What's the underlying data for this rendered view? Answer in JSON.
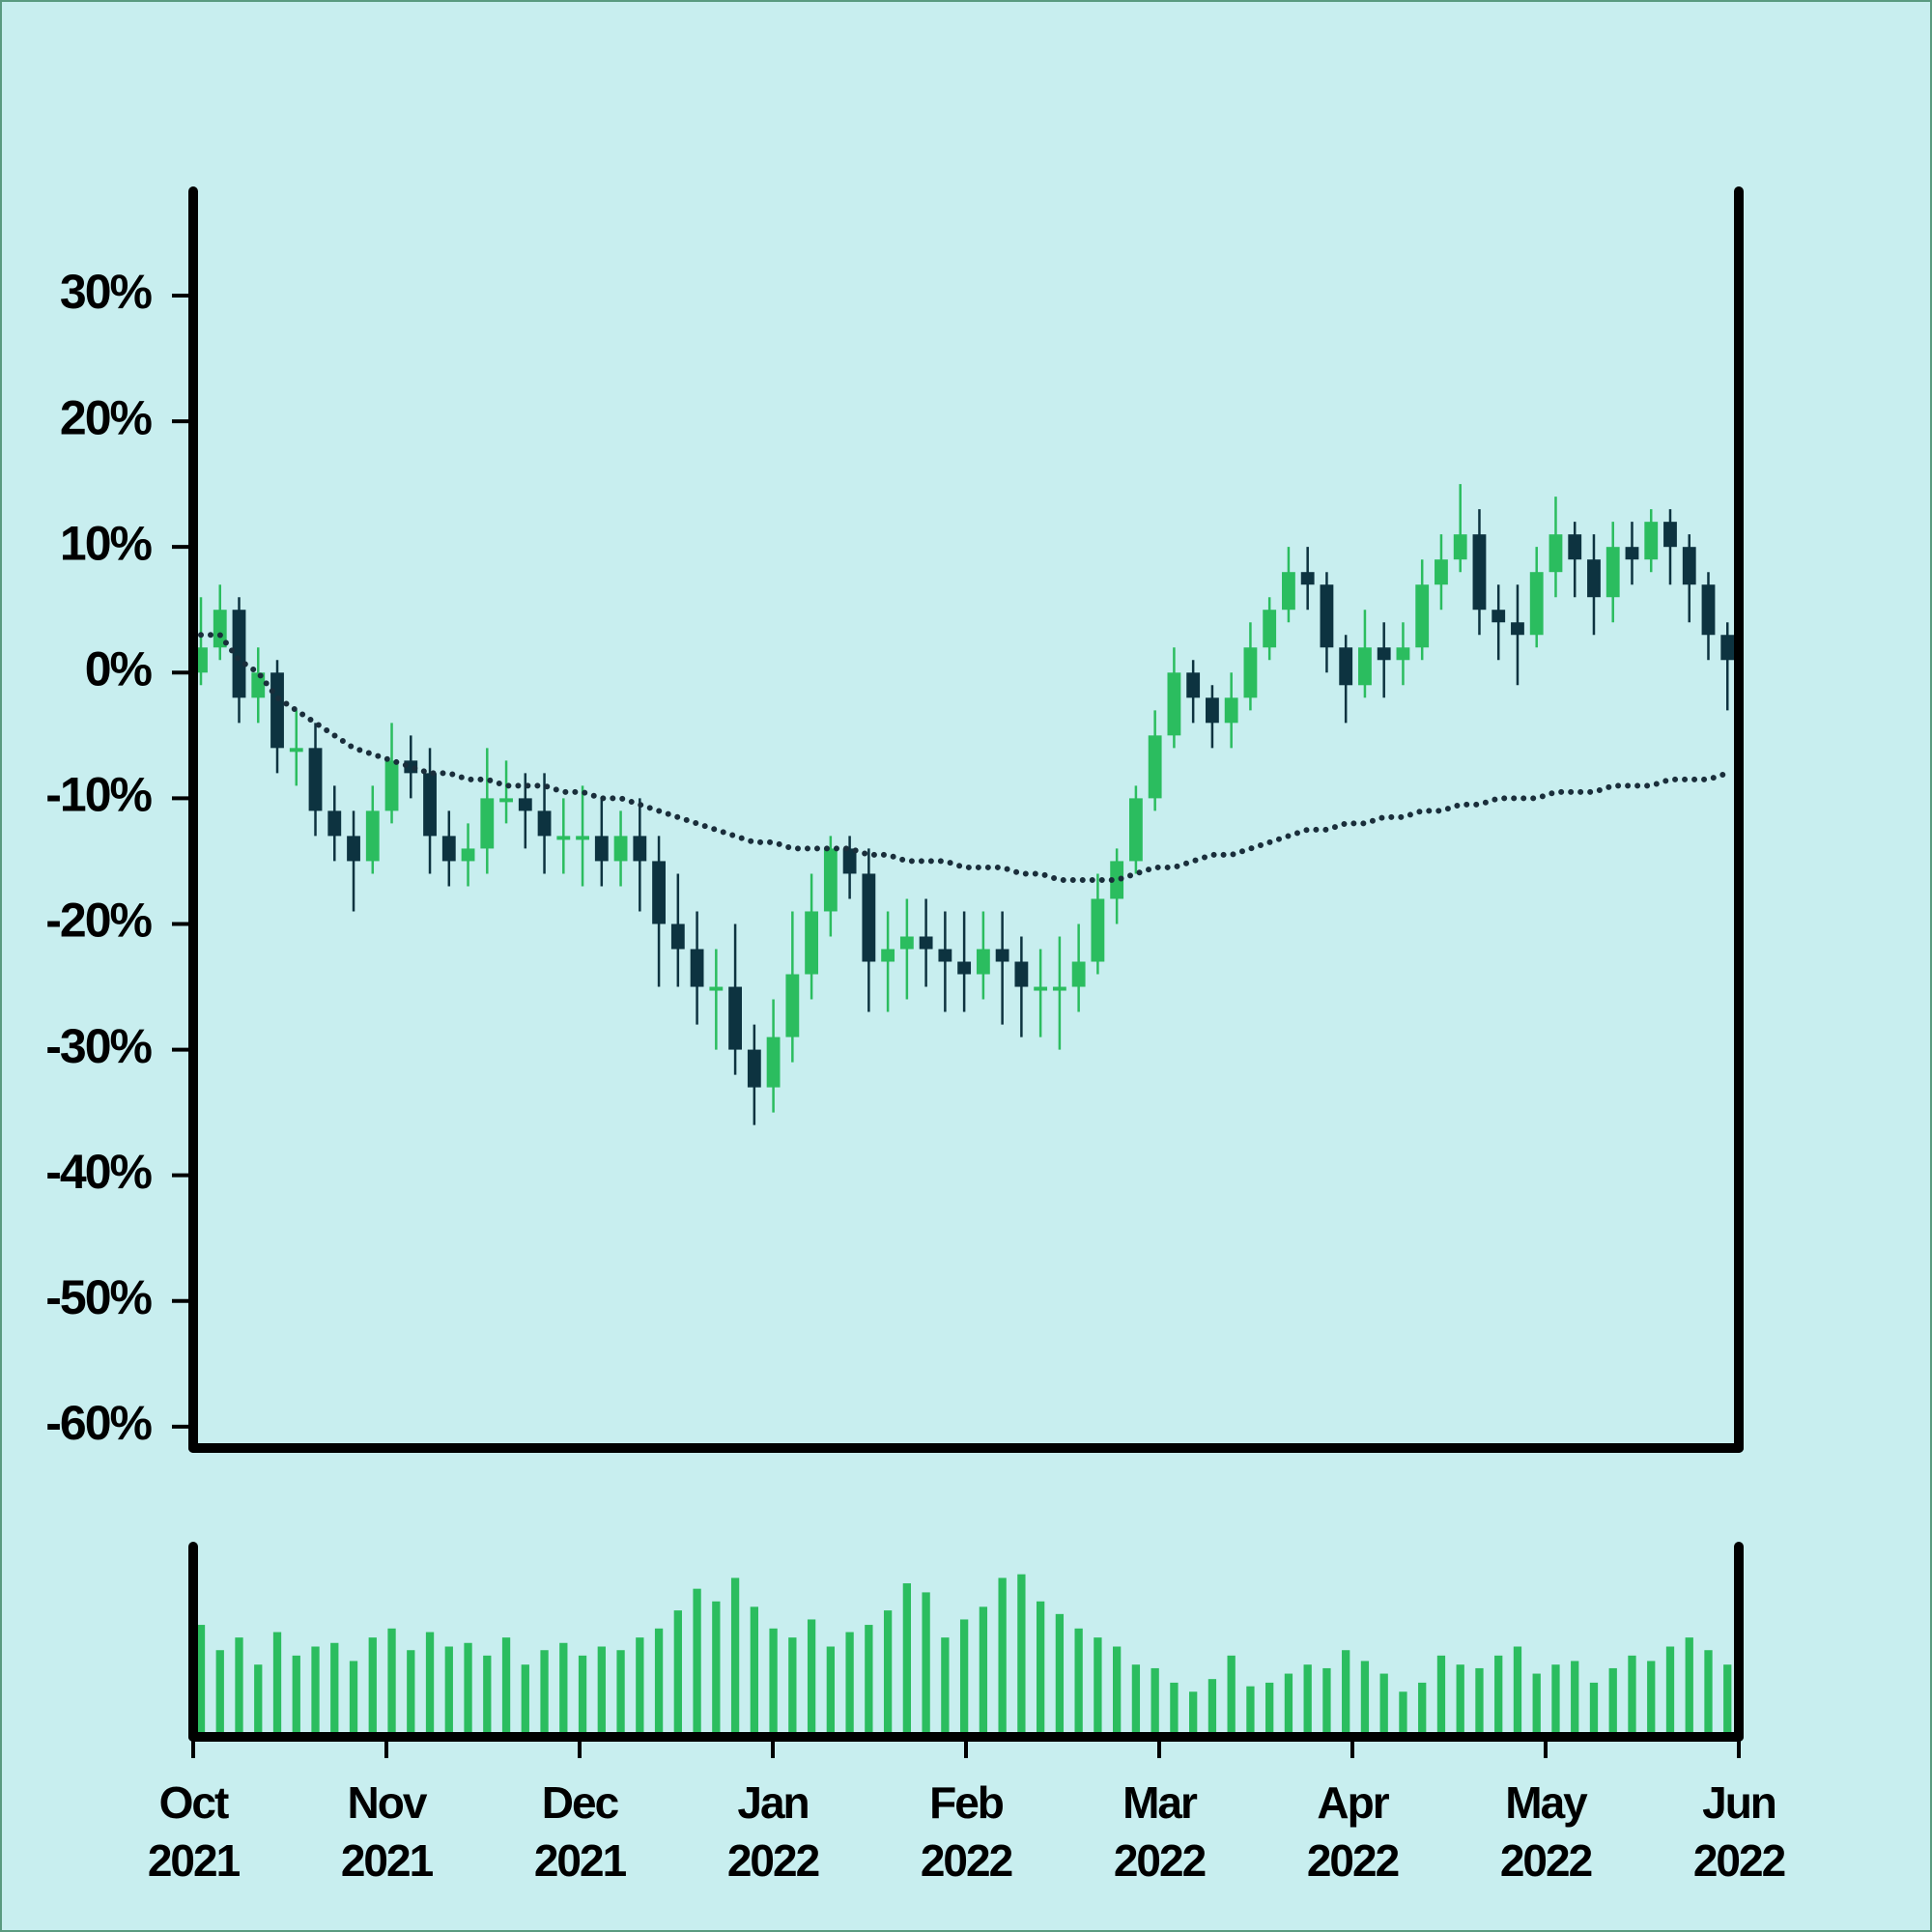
{
  "chart_data": {
    "type": "candlestick",
    "xlim": [
      "2021-10",
      "2022-06"
    ],
    "xticks": [
      {
        "value": "2021-10",
        "label": "Oct 2021"
      },
      {
        "value": "2021-11",
        "label": "Nov 2021"
      },
      {
        "value": "2021-12",
        "label": "Dec 2021"
      },
      {
        "value": "2022-01",
        "label": "Jan 2022"
      },
      {
        "value": "2022-02",
        "label": "Feb 2022"
      },
      {
        "value": "2022-03",
        "label": "Mar 2022"
      },
      {
        "value": "2022-04",
        "label": "Apr 2022"
      },
      {
        "value": "2022-05",
        "label": "May 2022"
      },
      {
        "value": "2022-06",
        "label": "Jun 2022"
      }
    ],
    "ylim": [
      -61.7,
      38.3
    ],
    "yticks": [
      {
        "value": -60,
        "label": "-60%"
      },
      {
        "value": -50,
        "label": "-50%"
      },
      {
        "value": -40,
        "label": "-40%"
      },
      {
        "value": -30,
        "label": "-30%"
      },
      {
        "value": -20,
        "label": "-20%"
      },
      {
        "value": -10,
        "label": "-10%"
      },
      {
        "value": 0,
        "label": "0%"
      },
      {
        "value": 10,
        "label": "10%"
      },
      {
        "value": 20,
        "label": "20%"
      },
      {
        "value": 30,
        "label": "30%"
      }
    ],
    "up_color": "#2bbd5f",
    "down_color": "#0d3340",
    "ma_color": "#1a2e3b",
    "volume_color": "#2bbd5f",
    "open": [
      0,
      2,
      5,
      -2,
      0,
      -6,
      -6,
      -11,
      -13,
      -15,
      -11,
      -7,
      -8,
      -13,
      -15,
      -14,
      -10,
      -10,
      -11,
      -13,
      -13,
      -13,
      -15,
      -13,
      -15,
      -20,
      -22,
      -25,
      -25,
      -30,
      -33,
      -29,
      -24,
      -19,
      -14,
      -16,
      -23,
      -22,
      -21,
      -22,
      -23,
      -24,
      -22,
      -23,
      -25,
      -25,
      -25,
      -23,
      -18,
      -15,
      -10,
      -5,
      0,
      -2,
      -4,
      -2,
      2,
      5,
      8,
      7,
      2,
      -1,
      2,
      1,
      2,
      7,
      9,
      11,
      5,
      4,
      3,
      8,
      11,
      9,
      6,
      10,
      9,
      12,
      10,
      7,
      3
    ],
    "high": [
      6,
      7,
      6,
      2,
      1,
      -3,
      -4,
      -9,
      -11,
      -9,
      -4,
      -5,
      -6,
      -11,
      -12,
      -6,
      -7,
      -8,
      -8,
      -10,
      -9,
      -10,
      -11,
      -10,
      -13,
      -16,
      -19,
      -22,
      -20,
      -28,
      -26,
      -19,
      -16,
      -13,
      -13,
      -14,
      -19,
      -18,
      -18,
      -19,
      -19,
      -19,
      -19,
      -21,
      -22,
      -21,
      -20,
      -16,
      -14,
      -9,
      -3,
      2,
      1,
      -1,
      0,
      4,
      6,
      10,
      10,
      8,
      3,
      5,
      4,
      4,
      9,
      11,
      15,
      13,
      7,
      7,
      10,
      14,
      12,
      11,
      12,
      12,
      13,
      13,
      11,
      8,
      4
    ],
    "low": [
      -1,
      1,
      -4,
      -4,
      -8,
      -9,
      -13,
      -15,
      -19,
      -16,
      -12,
      -10,
      -16,
      -17,
      -17,
      -16,
      -12,
      -14,
      -16,
      -16,
      -17,
      -17,
      -17,
      -19,
      -25,
      -25,
      -28,
      -30,
      -32,
      -36,
      -35,
      -31,
      -26,
      -21,
      -18,
      -27,
      -27,
      -26,
      -25,
      -27,
      -27,
      -26,
      -28,
      -29,
      -29,
      -30,
      -27,
      -24,
      -20,
      -16,
      -11,
      -6,
      -4,
      -6,
      -6,
      -3,
      1,
      4,
      5,
      0,
      -4,
      -2,
      -2,
      -1,
      1,
      5,
      8,
      3,
      1,
      -1,
      2,
      6,
      6,
      3,
      4,
      7,
      8,
      7,
      4,
      1,
      -3
    ],
    "close": [
      2,
      5,
      -2,
      0,
      -6,
      -6,
      -11,
      -13,
      -15,
      -11,
      -7,
      -8,
      -13,
      -15,
      -14,
      -10,
      -10,
      -11,
      -13,
      -13,
      -13,
      -15,
      -13,
      -15,
      -20,
      -22,
      -25,
      -25,
      -30,
      -33,
      -29,
      -24,
      -19,
      -14,
      -16,
      -23,
      -22,
      -21,
      -22,
      -23,
      -24,
      -22,
      -23,
      -25,
      -25,
      -25,
      -23,
      -18,
      -15,
      -10,
      -5,
      0,
      -2,
      -4,
      -2,
      2,
      5,
      8,
      7,
      2,
      -1,
      2,
      1,
      2,
      7,
      9,
      11,
      5,
      4,
      3,
      8,
      11,
      9,
      6,
      10,
      9,
      12,
      10,
      7,
      3,
      1
    ],
    "moving_average": [
      3,
      3,
      1,
      0,
      -2,
      -3,
      -4,
      -5,
      -6,
      -6.5,
      -7,
      -7.5,
      -8,
      -8,
      -8.5,
      -8.5,
      -9,
      -9,
      -9,
      -9.5,
      -9.5,
      -10,
      -10,
      -10.5,
      -11,
      -11.5,
      -12,
      -12.5,
      -13,
      -13.5,
      -13.5,
      -14,
      -14,
      -14,
      -14,
      -14.5,
      -14.5,
      -15,
      -15,
      -15,
      -15.5,
      -15.5,
      -15.5,
      -16,
      -16,
      -16.5,
      -16.5,
      -16.5,
      -16.5,
      -16,
      -15.5,
      -15.5,
      -15,
      -14.5,
      -14.5,
      -14,
      -13.5,
      -13,
      -12.5,
      -12.5,
      -12,
      -12,
      -11.5,
      -11.5,
      -11,
      -11,
      -10.5,
      -10.5,
      -10,
      -10,
      -10,
      -9.5,
      -9.5,
      -9.5,
      -9,
      -9,
      -9,
      -8.5,
      -8.5,
      -8.5,
      -8
    ],
    "volume_ylim": [
      0,
      100
    ],
    "volume": [
      62,
      48,
      55,
      40,
      58,
      45,
      50,
      52,
      42,
      55,
      60,
      48,
      58,
      50,
      52,
      45,
      55,
      40,
      48,
      52,
      45,
      50,
      48,
      55,
      60,
      70,
      82,
      75,
      88,
      72,
      60,
      55,
      65,
      50,
      58,
      62,
      70,
      85,
      80,
      55,
      65,
      72,
      88,
      90,
      75,
      68,
      60,
      55,
      50,
      40,
      38,
      30,
      25,
      32,
      45,
      28,
      30,
      35,
      40,
      38,
      48,
      42,
      35,
      25,
      30,
      45,
      40,
      38,
      45,
      50,
      35,
      40,
      42,
      30,
      38,
      45,
      42,
      50,
      55,
      48,
      40
    ]
  }
}
